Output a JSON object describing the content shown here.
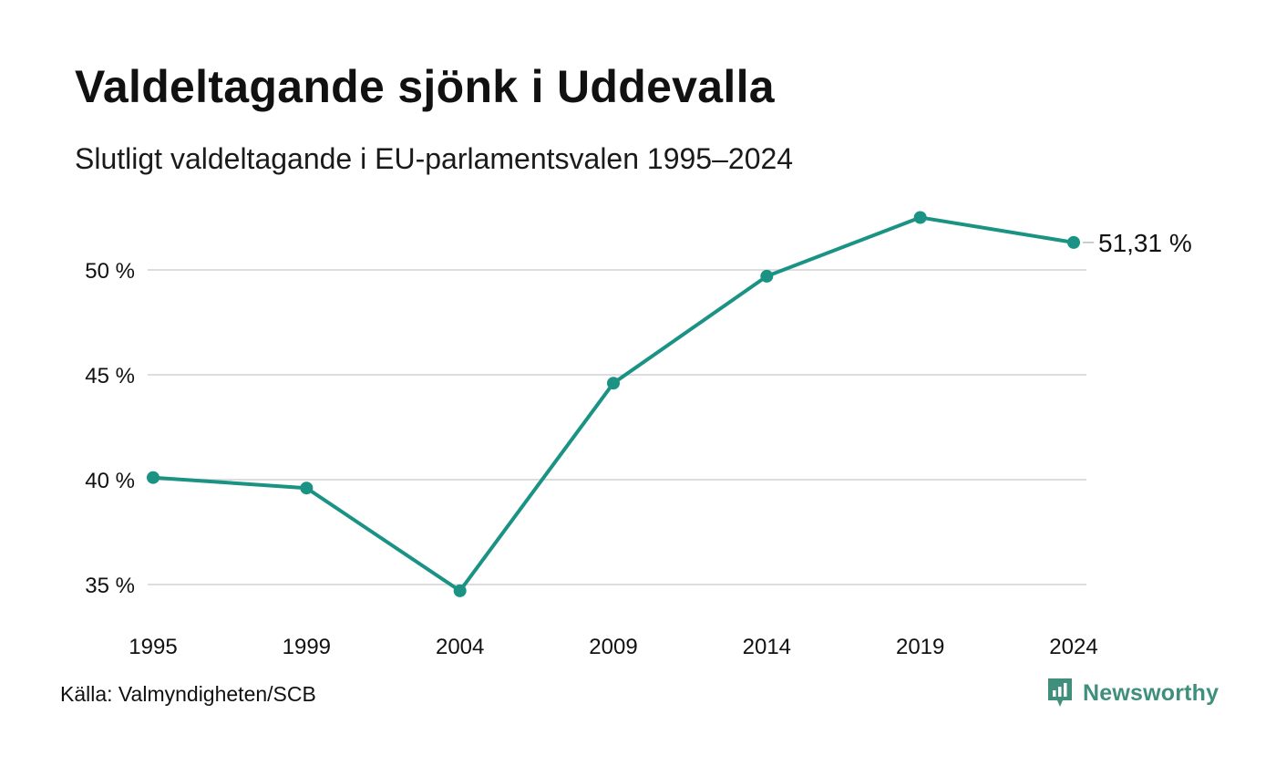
{
  "header": {
    "title": "Valdeltagande sjönk i Uddevalla",
    "subtitle": "Slutligt valdeltagande i EU-parlamentsvalen 1995–2024"
  },
  "footer": {
    "source": "Källa: Valmyndigheten/SCB",
    "brand": "Newsworthy"
  },
  "colors": {
    "line": "#1a9384",
    "grid": "#dddddd",
    "brand": "#3f8f7c"
  },
  "chart_data": {
    "type": "line",
    "title": "Valdeltagande sjönk i Uddevalla",
    "subtitle": "Slutligt valdeltagande i EU-parlamentsvalen 1995–2024",
    "x": [
      "1995",
      "1999",
      "2004",
      "2009",
      "2014",
      "2019",
      "2024"
    ],
    "series": [
      {
        "values": [
          40.1,
          39.6,
          34.7,
          44.6,
          49.7,
          52.5,
          51.31
        ]
      }
    ],
    "y_ticks": [
      35,
      40,
      45,
      50
    ],
    "y_tick_labels": [
      "35 %",
      "40 %",
      "45 %",
      "50 %"
    ],
    "end_label": "51,31 %",
    "grid": true,
    "legend": "none"
  }
}
